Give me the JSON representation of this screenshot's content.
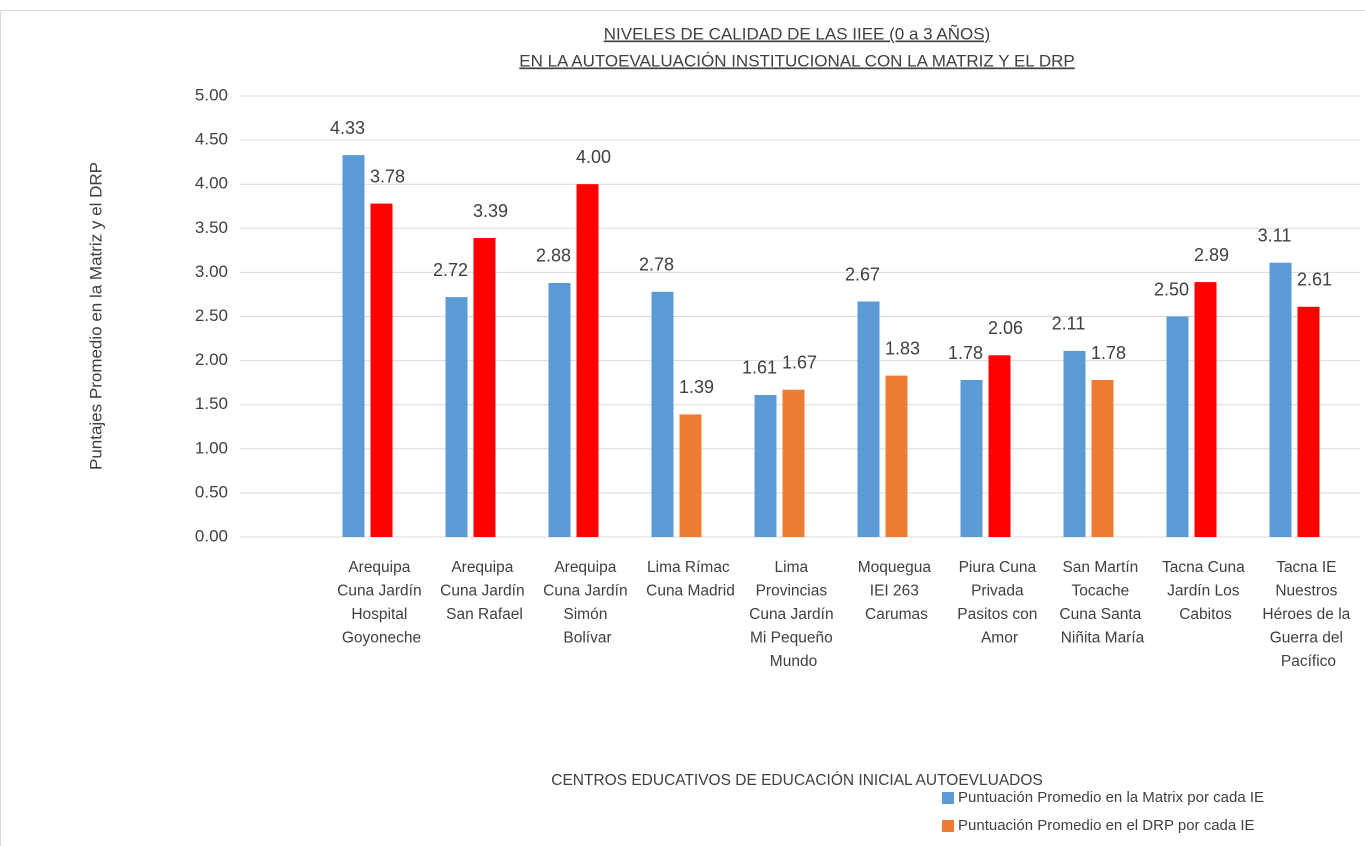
{
  "chart_data": {
    "type": "bar",
    "title": [
      "NIVELES DE CALIDAD DE LAS IIEE (0 a 3 AÑOS)",
      "EN LA AUTOEVALUACIÓN INSTITUCIONAL CON LA MATRIZ Y EL DRP"
    ],
    "x_label": "CENTROS EDUCATIVOS DE EDUCACIÓN INICIAL AUTOEVLUADOS",
    "y_label": "Puntajes Promedio en la Matriz y el DRP",
    "categories": [
      "Arequipa Cuna Jardín Hospital Goyoneche",
      "Arequipa Cuna Jardín San Rafael",
      "Arequipa Cuna Jardín Simón Bolívar",
      "Lima Rímac Cuna Madrid",
      "Lima Provincias Cuna Jardín Mi Pequeño Mundo",
      "Moquegua IEI 263 Carumas",
      "Piura Cuna Privada Pasitos con Amor",
      "San Martín Tocache Cuna Santa Niñita María",
      "Tacna Cuna Jardín Los Cabitos",
      "Tacna IE Nuestros Héroes de la Guerra del Pacífico"
    ],
    "series": [
      {
        "name": "Puntuación Promedio en la Matrix  por cada IE",
        "color": "#5b9bd5",
        "values": [
          4.33,
          2.72,
          2.88,
          2.78,
          1.61,
          2.67,
          1.78,
          2.11,
          2.5,
          3.11
        ],
        "value_labels": [
          "4.33",
          "2.72",
          "2.88",
          "2.78",
          "1.61",
          "2.67",
          "1.78",
          "2.11",
          "2.50",
          "3.11"
        ]
      },
      {
        "name": "Puntuación Promedio en el DRP  por cada IE",
        "color": "#ed7d31",
        "point_colors": [
          "#ff0000",
          "#ff0000",
          "#ff0000",
          "#ed7d31",
          "#ed7d31",
          "#ed7d31",
          "#ff0000",
          "#ed7d31",
          "#ff0000",
          "#ff0000"
        ],
        "values": [
          3.78,
          3.39,
          4,
          1.39,
          1.67,
          1.83,
          2.06,
          1.78,
          2.89,
          2.61
        ],
        "value_labels": [
          "3.78",
          "3.39",
          "4.00",
          "1.39",
          "1.67",
          "1.83",
          "2.06",
          "1.78",
          "2.89",
          "2.61"
        ]
      }
    ],
    "ylim": [
      0,
      5
    ],
    "yticks": [
      {
        "value": 0,
        "label": "0.00"
      },
      {
        "value": 0.5,
        "label": "0.50"
      },
      {
        "value": 1,
        "label": "1.00"
      },
      {
        "value": 1.5,
        "label": "1.50"
      },
      {
        "value": 2,
        "label": "2.00"
      },
      {
        "value": 2.5,
        "label": "2.50"
      },
      {
        "value": 3,
        "label": "3.00"
      },
      {
        "value": 3.5,
        "label": "3.50"
      },
      {
        "value": 4,
        "label": "4.00"
      },
      {
        "value": 4.5,
        "label": "4.50"
      },
      {
        "value": 5,
        "label": "5.00"
      }
    ],
    "grid": true,
    "legend": "bottom-right"
  }
}
